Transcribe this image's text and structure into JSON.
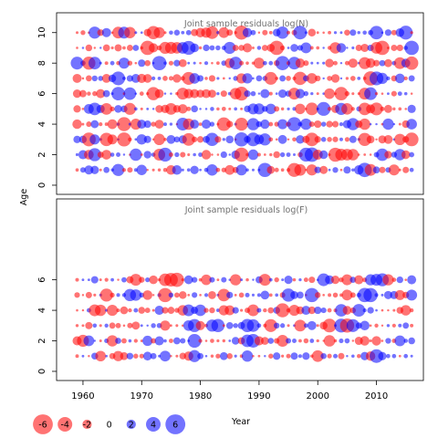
{
  "chart_data": [
    {
      "type": "scatter",
      "subtype": "bubble",
      "title": "Joint sample residuals log(N)",
      "xlabel": "",
      "ylabel": "Age",
      "xlim": [
        1955.5,
        2018
      ],
      "ylim": [
        -0.6,
        11.3
      ],
      "x_range_years": [
        1959,
        2016
      ],
      "ages": [
        1,
        2,
        3,
        4,
        5,
        6,
        7,
        8,
        9,
        10
      ],
      "y_ticks": [
        0,
        2,
        4,
        6,
        8,
        10
      ],
      "size_encodes": "absolute residual",
      "colors": {
        "positive": "#ff0000",
        "negative": "#0000ff"
      },
      "residual_seed": 17,
      "grid": false
    },
    {
      "type": "scatter",
      "subtype": "bubble",
      "title": "Joint sample residuals log(F)",
      "xlabel": "Year",
      "ylabel": "",
      "xlim": [
        1955.5,
        2018
      ],
      "ylim": [
        -0.6,
        11.3
      ],
      "x_range_years": [
        1959,
        2016
      ],
      "ages": [
        1,
        2,
        3,
        4,
        5,
        6
      ],
      "y_ticks": [
        0,
        2,
        4,
        6
      ],
      "x_ticks": [
        1960,
        1970,
        1980,
        1990,
        2000,
        2010
      ],
      "size_encodes": "absolute residual",
      "colors": {
        "positive": "#ff0000",
        "negative": "#0000ff"
      },
      "residual_seed": 91,
      "grid": false
    }
  ],
  "legend": {
    "position": "bottom-left",
    "items": [
      {
        "label": "-6",
        "value": -6
      },
      {
        "label": "-4",
        "value": -4
      },
      {
        "label": "-2",
        "value": -2
      },
      {
        "label": "0",
        "value": 0
      },
      {
        "label": "2",
        "value": 2
      },
      {
        "label": "4",
        "value": 4
      },
      {
        "label": "6",
        "value": 6
      }
    ]
  },
  "shared_ylabel": "Age",
  "shared_xlabel": "Year"
}
